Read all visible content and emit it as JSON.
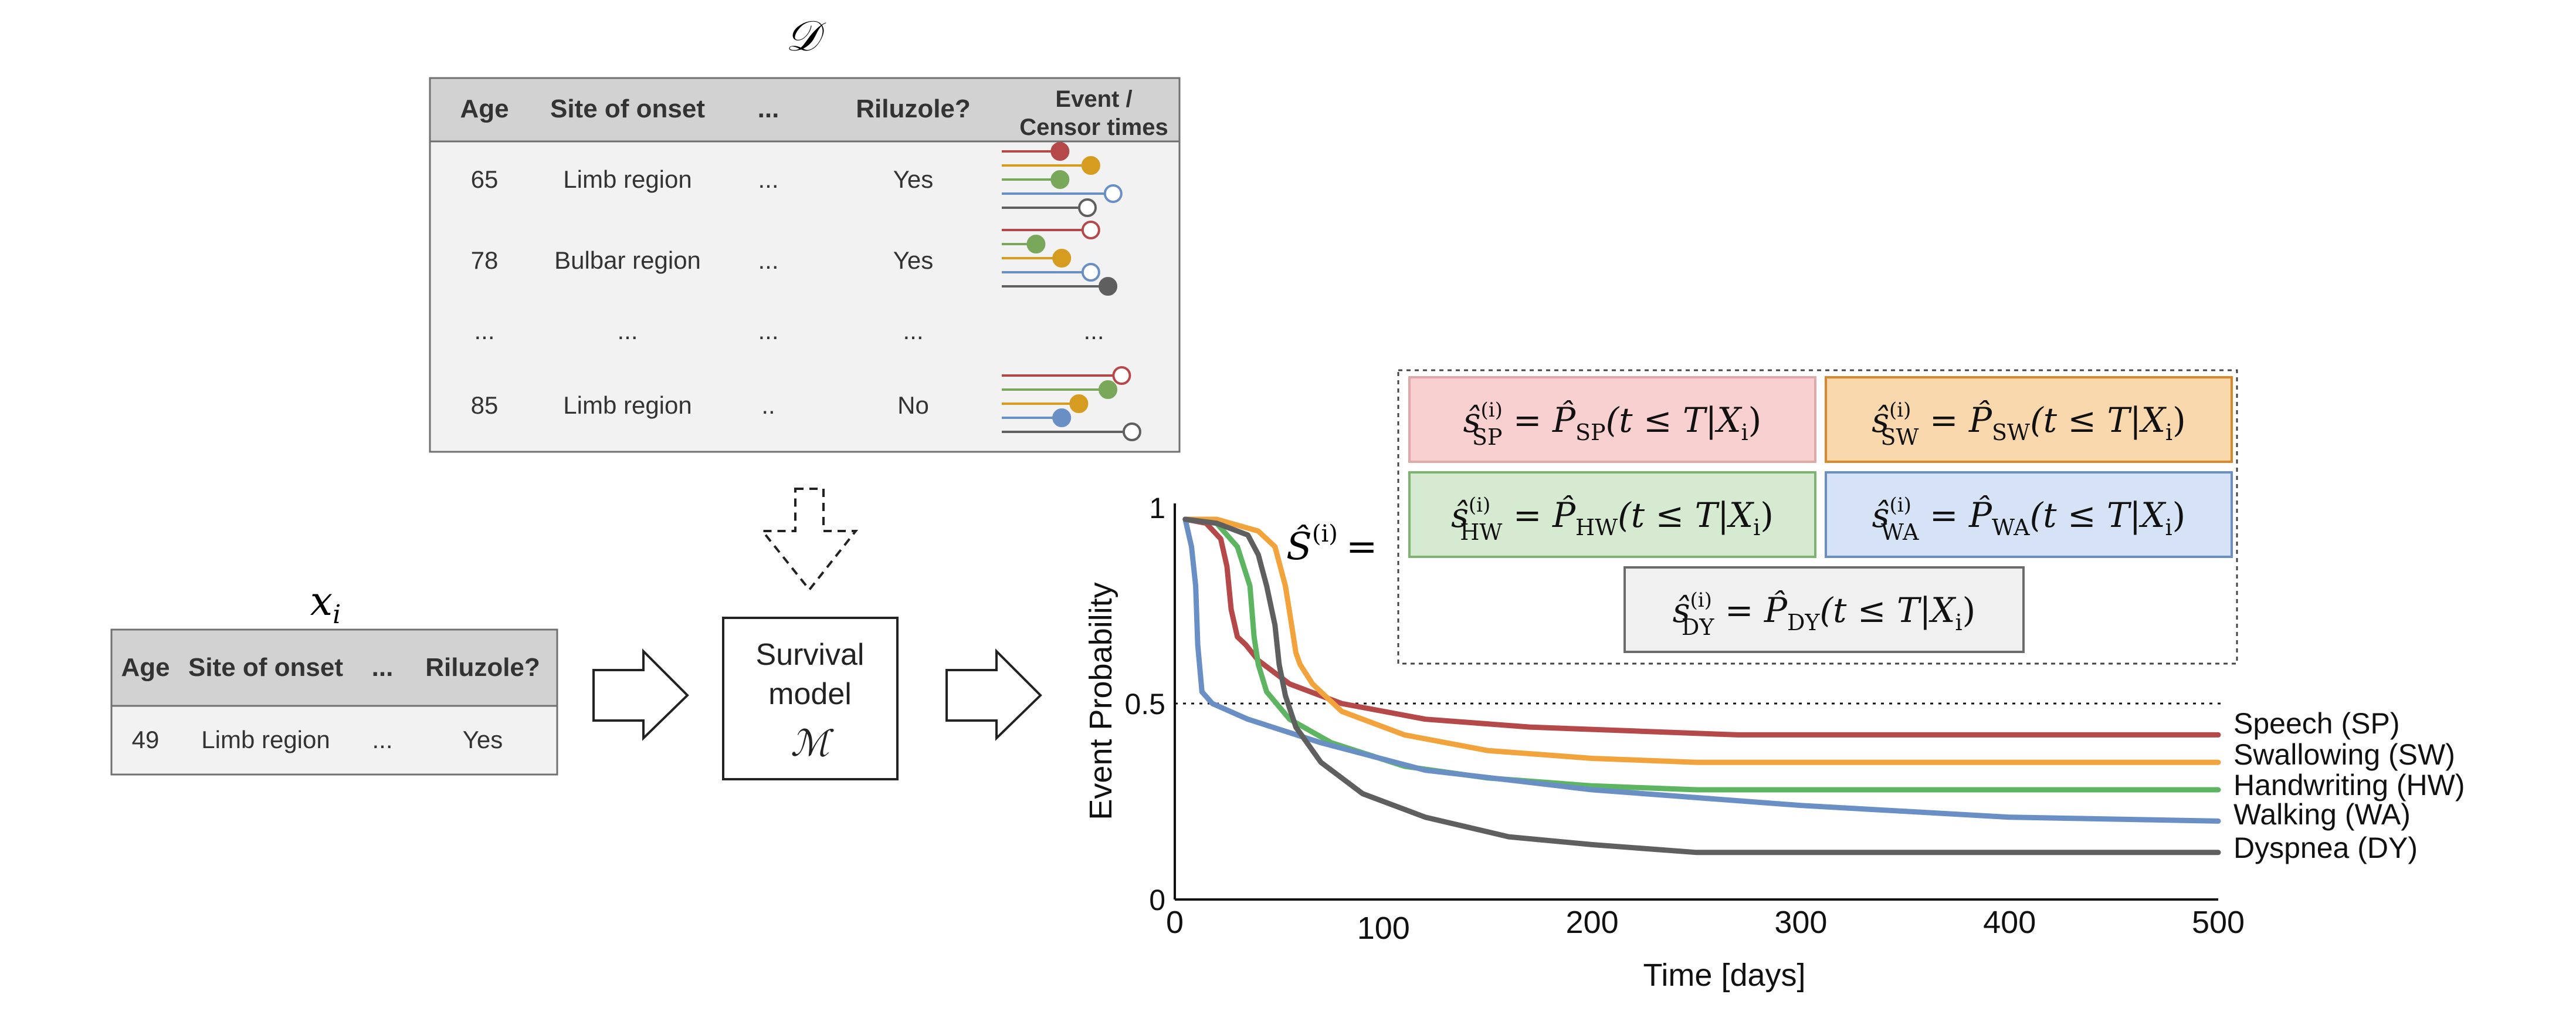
{
  "dataset_table": {
    "symbol": "𝒟",
    "headers": [
      "Age",
      "Site of onset",
      "...",
      "Riluzole?",
      "Event /",
      "Censor times"
    ],
    "rows": [
      [
        "65",
        "Limb region",
        "...",
        "Yes"
      ],
      [
        "78",
        "Bulbar region",
        "...",
        "Yes"
      ],
      [
        "...",
        "...",
        "...",
        "...",
        "..."
      ],
      [
        "85",
        "Limb region",
        "..",
        "No"
      ]
    ]
  },
  "patient_table": {
    "symbol_base": "x",
    "symbol_sub": "i",
    "headers": [
      "Age",
      "Site of onset",
      "...",
      "Riluzole?"
    ],
    "row": [
      "49",
      "Limb region",
      "...",
      "Yes"
    ]
  },
  "model_box": {
    "line1": "Survival",
    "line2": "model",
    "symbol": "ℳ"
  },
  "formulas": {
    "S_hat": "Ŝ",
    "sup": "(i)",
    "equals": "=",
    "sp": "ŝ",
    "sp_sub": "SP",
    "sw_sub": "SW",
    "hw_sub": "HW",
    "wa_sub": "WA",
    "dy_sub": "DY",
    "rhs_P": "P̂",
    "rhs_open": "(t ≤ T|X",
    "rhs_i": "i",
    "rhs_close": ")"
  },
  "chart_data": {
    "type": "line",
    "xlabel": "Time [days]",
    "ylabel": "Event Probability",
    "xlim": [
      0,
      500
    ],
    "ylim": [
      0,
      1
    ],
    "xticks": [
      "0",
      "100",
      "200",
      "300",
      "400",
      "500"
    ],
    "yticks": [
      "0",
      "0.5",
      "1"
    ],
    "reference_line": 0.5,
    "series": [
      {
        "name": "Speech (SP)",
        "color": "#b5494a",
        "x": [
          5,
          15,
          22,
          25,
          27,
          30,
          34,
          40,
          55,
          80,
          120,
          170,
          220,
          270,
          500
        ],
        "y": [
          0.97,
          0.96,
          0.92,
          0.85,
          0.74,
          0.67,
          0.65,
          0.61,
          0.55,
          0.5,
          0.46,
          0.44,
          0.43,
          0.42,
          0.42
        ]
      },
      {
        "name": "Swallowing (SW)",
        "color": "#f2a33c",
        "x": [
          5,
          20,
          40,
          48,
          53,
          56,
          58,
          60,
          66,
          80,
          110,
          150,
          200,
          250,
          300,
          500
        ],
        "y": [
          0.97,
          0.97,
          0.94,
          0.9,
          0.8,
          0.7,
          0.63,
          0.6,
          0.55,
          0.48,
          0.42,
          0.38,
          0.36,
          0.35,
          0.35,
          0.35
        ]
      },
      {
        "name": "Handwriting (HW)",
        "color": "#5db562",
        "x": [
          5,
          20,
          30,
          36,
          38,
          40,
          44,
          55,
          75,
          110,
          150,
          200,
          250,
          300,
          500
        ],
        "y": [
          0.97,
          0.96,
          0.9,
          0.8,
          0.67,
          0.6,
          0.53,
          0.46,
          0.4,
          0.34,
          0.31,
          0.29,
          0.28,
          0.28,
          0.28
        ]
      },
      {
        "name": "Walking (WA)",
        "color": "#6a8fc5",
        "x": [
          5,
          8,
          10,
          11,
          13,
          18,
          35,
          70,
          120,
          200,
          300,
          400,
          500
        ],
        "y": [
          0.97,
          0.9,
          0.8,
          0.65,
          0.53,
          0.5,
          0.46,
          0.4,
          0.33,
          0.28,
          0.24,
          0.21,
          0.2
        ]
      },
      {
        "name": "Dyspnea (DY)",
        "color": "#5f5f5f",
        "x": [
          5,
          20,
          35,
          40,
          44,
          48,
          50,
          53,
          58,
          70,
          90,
          120,
          160,
          200,
          250,
          280,
          500
        ],
        "y": [
          0.97,
          0.96,
          0.93,
          0.88,
          0.8,
          0.7,
          0.6,
          0.52,
          0.44,
          0.35,
          0.27,
          0.21,
          0.16,
          0.14,
          0.12,
          0.12,
          0.12
        ]
      }
    ]
  },
  "colors": {
    "sp_fill": "#f8d0cf",
    "sp_stroke": "#e0a8a7",
    "sw_fill": "#fad8ad",
    "sw_stroke": "#d9882c",
    "hw_fill": "#d6ead2",
    "hw_stroke": "#7fb371",
    "wa_fill": "#d6e3f6",
    "wa_stroke": "#6a8fc5",
    "dy_fill": "#f0f0f0",
    "dy_stroke": "#6b6b6b",
    "table_header": "#d2d2d2",
    "table_body": "#f2f2f2"
  },
  "lollipops": [
    [
      {
        "color": "#b5494a",
        "x": 0.34,
        "filled": true
      },
      {
        "color": "#d69c1f",
        "x": 0.52,
        "filled": true
      },
      {
        "color": "#7aa85a",
        "x": 0.34,
        "filled": true
      },
      {
        "color": "#6a8fc5",
        "x": 0.65,
        "filled": false
      },
      {
        "color": "#5f5f5f",
        "x": 0.5,
        "filled": false
      }
    ],
    [
      {
        "color": "#b5494a",
        "x": 0.52,
        "filled": false
      },
      {
        "color": "#7aa85a",
        "x": 0.2,
        "filled": true
      },
      {
        "color": "#d69c1f",
        "x": 0.35,
        "filled": true
      },
      {
        "color": "#6a8fc5",
        "x": 0.52,
        "filled": false
      },
      {
        "color": "#5f5f5f",
        "x": 0.62,
        "filled": true
      }
    ],
    [
      {
        "color": "#b5494a",
        "x": 0.7,
        "filled": false
      },
      {
        "color": "#7aa85a",
        "x": 0.62,
        "filled": true
      },
      {
        "color": "#d69c1f",
        "x": 0.45,
        "filled": true
      },
      {
        "color": "#6a8fc5",
        "x": 0.35,
        "filled": true
      },
      {
        "color": "#5f5f5f",
        "x": 0.76,
        "filled": false
      }
    ]
  ]
}
